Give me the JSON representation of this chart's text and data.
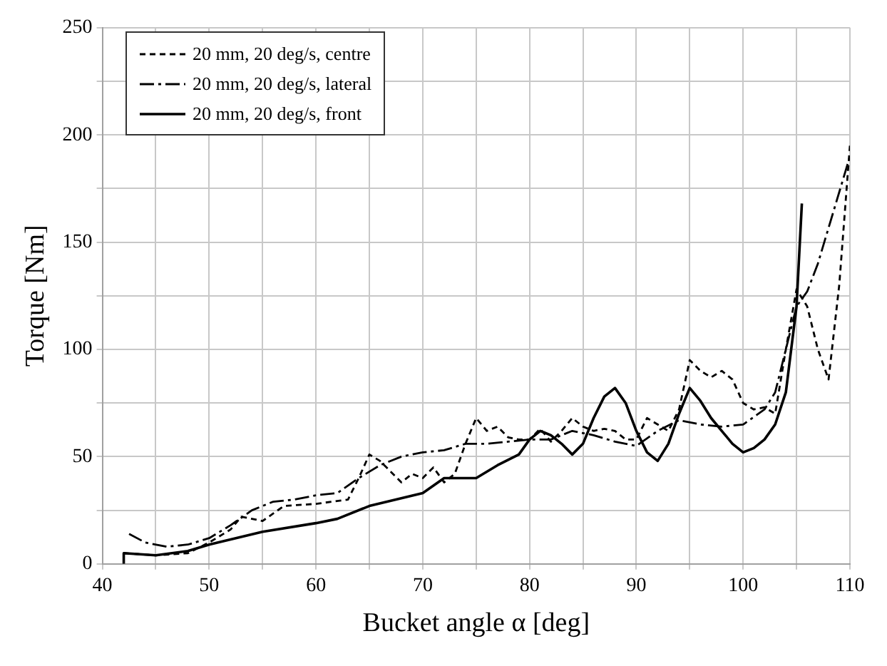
{
  "chart_data": {
    "type": "line",
    "xlabel": "Bucket angle α [deg]",
    "ylabel": "Torque [Nm]",
    "xlim": [
      40,
      110
    ],
    "xticks": [
      40,
      {
        "value": 45,
        "label": null
      },
      50,
      {
        "value": 55,
        "label": null
      },
      60,
      {
        "value": 65,
        "label": null
      },
      70,
      {
        "value": 75,
        "label": null
      },
      80,
      {
        "value": 85,
        "label": null
      },
      90,
      {
        "value": 95,
        "label": null
      },
      100,
      {
        "value": 105,
        "label": null
      },
      110
    ],
    "ylim": [
      0,
      250
    ],
    "yticks": [
      0,
      {
        "value": 25,
        "label": null
      },
      50,
      {
        "value": 75,
        "label": null
      },
      100,
      {
        "value": 125,
        "label": null
      },
      150,
      {
        "value": 175,
        "label": null
      },
      200,
      {
        "value": 225,
        "label": null
      },
      250
    ],
    "grid": true,
    "legend": "top left",
    "marker": "none",
    "series": [
      {
        "name": "20 mm, 20 deg/s, centre",
        "color": "#000000",
        "line_style": "dashed",
        "x": [
          42,
          45,
          48,
          50,
          52,
          53,
          55,
          57,
          60,
          63,
          64,
          65,
          66,
          67,
          68,
          69,
          70,
          71,
          72,
          73,
          74,
          75,
          76,
          77,
          78,
          79,
          80,
          81,
          82,
          83,
          84,
          85,
          86,
          87,
          88,
          89,
          90,
          91,
          92,
          93,
          94,
          95,
          96,
          97,
          98,
          99,
          100,
          101,
          102,
          103,
          104,
          105,
          106,
          107,
          108,
          109,
          110
        ],
        "values": [
          5,
          4,
          5,
          10,
          16,
          22,
          20,
          27,
          28,
          30,
          40,
          51,
          48,
          43,
          38,
          42,
          40,
          45,
          38,
          42,
          56,
          68,
          62,
          64,
          59,
          58,
          58,
          63,
          57,
          62,
          68,
          64,
          62,
          63,
          62,
          58,
          58,
          68,
          65,
          62,
          72,
          95,
          90,
          87,
          90,
          86,
          75,
          72,
          73,
          70,
          100,
          128,
          120,
          100,
          86,
          130,
          195
        ]
      },
      {
        "name": "20 mm, 20 deg/s, lateral",
        "color": "#000000",
        "line_style": "dashdot",
        "x": [
          42.5,
          44,
          46,
          48,
          50,
          52,
          54,
          56,
          58,
          60,
          62,
          64,
          66,
          68,
          70,
          72,
          74,
          76,
          78,
          80,
          82,
          84,
          86,
          88,
          90,
          92,
          94,
          96,
          98,
          100,
          102,
          103,
          104,
          105,
          106,
          107,
          110
        ],
        "values": [
          14,
          10,
          8,
          9,
          12,
          18,
          25,
          29,
          30,
          32,
          33,
          40,
          46,
          50,
          52,
          53,
          56,
          56,
          57,
          58,
          58,
          62,
          60,
          57,
          55,
          62,
          67,
          65,
          64,
          65,
          72,
          80,
          100,
          120,
          127,
          140,
          190
        ]
      },
      {
        "name": "20 mm, 20 deg/s, front",
        "color": "#000000",
        "line_style": "solid",
        "x": [
          42,
          42,
          45,
          48,
          50,
          55,
          60,
          62,
          65,
          70,
          72,
          75,
          77,
          79,
          80,
          81,
          82,
          83,
          84,
          85,
          86,
          87,
          88,
          89,
          90,
          91,
          92,
          93,
          94,
          95,
          96,
          97,
          98,
          99,
          100,
          101,
          102,
          103,
          104,
          105,
          105.5
        ],
        "values": [
          0,
          5,
          4,
          6,
          9,
          15,
          19,
          21,
          27,
          33,
          40,
          40,
          46,
          51,
          58,
          62,
          60,
          56,
          51,
          56,
          68,
          78,
          82,
          75,
          62,
          52,
          48,
          56,
          70,
          82,
          76,
          68,
          62,
          56,
          52,
          54,
          58,
          65,
          80,
          120,
          168
        ]
      }
    ]
  }
}
